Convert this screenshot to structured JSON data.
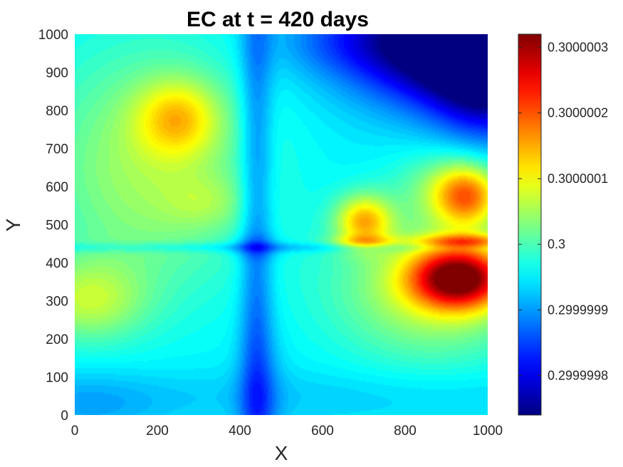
{
  "chart_data": {
    "type": "heatmap",
    "title": "EC at t = 420 days",
    "xlabel": "X",
    "ylabel": "Y",
    "xlim": [
      0,
      1000
    ],
    "ylim": [
      0,
      1000
    ],
    "x_ticks": [
      "0",
      "200",
      "400",
      "600",
      "800",
      "1000"
    ],
    "y_ticks": [
      "0",
      "100",
      "200",
      "300",
      "400",
      "500",
      "600",
      "700",
      "800",
      "900",
      "1000"
    ],
    "colormap": "jet",
    "colorbar": {
      "range": [
        0.29999974,
        0.30000032
      ],
      "ticks": [
        {
          "value": 0.2999998,
          "label": "0.2999998"
        },
        {
          "value": 0.2999999,
          "label": "0.2999999"
        },
        {
          "value": 0.3,
          "label": "0.3"
        },
        {
          "value": 0.3000001,
          "label": "0.3000001"
        },
        {
          "value": 0.3000002,
          "label": "0.3000002"
        },
        {
          "value": 0.3000003,
          "label": "0.3000003"
        }
      ]
    },
    "field": {
      "base": 0.29999995,
      "features": [
        {
          "x": 930,
          "y": 360,
          "sx": 80,
          "sy": 55,
          "amp": 3.2e-07
        },
        {
          "x": 870,
          "y": 330,
          "sx": 170,
          "sy": 130,
          "amp": 1.2e-07
        },
        {
          "x": 950,
          "y": 575,
          "sx": 55,
          "sy": 55,
          "amp": 1.8e-07
        },
        {
          "x": 900,
          "y": 600,
          "sx": 90,
          "sy": 70,
          "amp": 7e-08
        },
        {
          "x": 950,
          "y": 455,
          "sx": 80,
          "sy": 14,
          "amp": 1.2e-07
        },
        {
          "x": 700,
          "y": 510,
          "sx": 48,
          "sy": 48,
          "amp": 1.7e-07
        },
        {
          "x": 700,
          "y": 455,
          "sx": 55,
          "sy": 12,
          "amp": 8e-08
        },
        {
          "x": 250,
          "y": 780,
          "sx": 70,
          "sy": 70,
          "amp": 1.2e-07
        },
        {
          "x": 180,
          "y": 650,
          "sx": 190,
          "sy": 230,
          "amp": 1e-07
        },
        {
          "x": 30,
          "y": 300,
          "sx": 100,
          "sy": 75,
          "amp": 1e-07
        },
        {
          "x": 320,
          "y": 560,
          "sx": 70,
          "sy": 50,
          "amp": 4e-08
        },
        {
          "x": 960,
          "y": 980,
          "sx": 190,
          "sy": 110,
          "amp": -3.4e-07
        },
        {
          "x": 1000,
          "y": 860,
          "sx": 90,
          "sy": 110,
          "amp": -1.2e-07
        },
        {
          "x": 640,
          "y": 980,
          "sx": 120,
          "sy": 60,
          "amp": -4e-08
        },
        {
          "x": 440,
          "y": 500,
          "sx": 28,
          "sy": 900,
          "amp": -8e-08
        },
        {
          "x": 440,
          "y": 440,
          "sx": 45,
          "sy": 22,
          "amp": -5e-08
        },
        {
          "x": 500,
          "y": 440,
          "sx": 900,
          "sy": 9,
          "amp": -4e-08
        },
        {
          "x": 450,
          "y": 30,
          "sx": 40,
          "sy": 140,
          "amp": -4e-08
        },
        {
          "x": 40,
          "y": 20,
          "sx": 120,
          "sy": 60,
          "amp": -3e-08
        },
        {
          "x": 500,
          "y": 50,
          "sx": 900,
          "sy": 50,
          "amp": -2e-08
        }
      ]
    }
  }
}
